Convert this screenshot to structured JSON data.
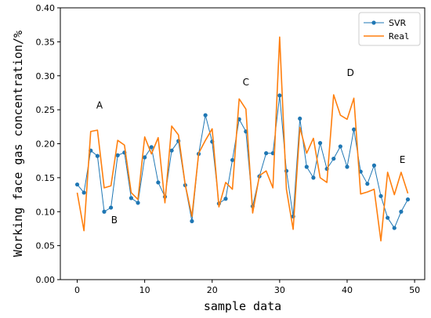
{
  "chart_data": {
    "type": "line",
    "title": "",
    "xlabel": "sample data",
    "ylabel": "Working face gas concentration/%",
    "xlim": [
      -2.5,
      51.5
    ],
    "ylim": [
      0.0,
      0.4
    ],
    "x_ticks": [
      "0",
      "10",
      "20",
      "30",
      "40",
      "50"
    ],
    "y_ticks": [
      "0.00",
      "0.05",
      "0.10",
      "0.15",
      "0.20",
      "0.25",
      "0.30",
      "0.35",
      "0.40"
    ],
    "grid": false,
    "legend_position": "top-right",
    "x": [
      0,
      1,
      2,
      3,
      4,
      5,
      6,
      7,
      8,
      9,
      10,
      11,
      12,
      13,
      14,
      15,
      16,
      17,
      18,
      19,
      20,
      21,
      22,
      23,
      24,
      25,
      26,
      27,
      28,
      29,
      30,
      31,
      32,
      33,
      34,
      35,
      36,
      37,
      38,
      39,
      40,
      41,
      42,
      43,
      44,
      45,
      46,
      47,
      48,
      49
    ],
    "series": [
      {
        "name": "SVR",
        "color": "#1f77b4",
        "marker": "circle",
        "values": [
          0.14,
          0.128,
          0.19,
          0.182,
          0.1,
          0.106,
          0.183,
          0.187,
          0.12,
          0.113,
          0.18,
          0.195,
          0.143,
          0.122,
          0.19,
          0.204,
          0.139,
          0.086,
          0.185,
          0.242,
          0.203,
          0.112,
          0.119,
          0.176,
          0.236,
          0.218,
          0.108,
          0.152,
          0.186,
          0.186,
          0.271,
          0.16,
          0.093,
          0.237,
          0.166,
          0.15,
          0.201,
          0.163,
          0.178,
          0.196,
          0.166,
          0.221,
          0.159,
          0.141,
          0.168,
          0.123,
          0.091,
          0.076,
          0.1,
          0.118
        ]
      },
      {
        "name": "Real",
        "color": "#ff7f0e",
        "marker": "none",
        "values": [
          0.128,
          0.072,
          0.218,
          0.22,
          0.135,
          0.138,
          0.205,
          0.198,
          0.128,
          0.118,
          0.21,
          0.185,
          0.209,
          0.113,
          0.226,
          0.213,
          0.14,
          0.093,
          0.186,
          0.205,
          0.222,
          0.107,
          0.143,
          0.133,
          0.266,
          0.251,
          0.098,
          0.153,
          0.16,
          0.135,
          0.357,
          0.133,
          0.074,
          0.224,
          0.186,
          0.208,
          0.15,
          0.143,
          0.272,
          0.242,
          0.236,
          0.267,
          0.126,
          0.129,
          0.133,
          0.057,
          0.158,
          0.125,
          0.158,
          0.127
        ]
      }
    ],
    "annotations": [
      {
        "text": "A",
        "x": 3.3,
        "y": 0.252
      },
      {
        "text": "B",
        "x": 5.5,
        "y": 0.083
      },
      {
        "text": "C",
        "x": 25.0,
        "y": 0.286
      },
      {
        "text": "D",
        "x": 40.5,
        "y": 0.3
      },
      {
        "text": "E",
        "x": 48.2,
        "y": 0.172
      }
    ]
  }
}
